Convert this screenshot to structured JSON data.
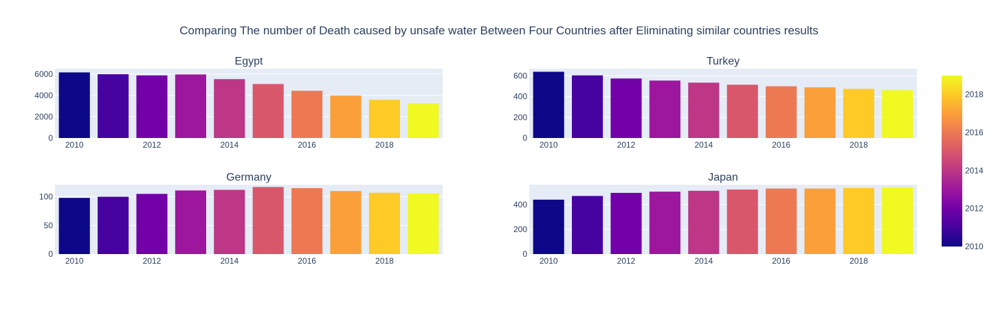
{
  "title": "Comparing The number of Death caused by unsafe water Between Four Countries after Eliminating similar countries results",
  "chart_data": {
    "type": "bar",
    "color_scale": {
      "name": "plasma",
      "stops": [
        "#0d0887",
        "#46039f",
        "#7201a8",
        "#9c179e",
        "#bd3786",
        "#d8576b",
        "#ed7953",
        "#fb9f3a",
        "#fdca26",
        "#f0f921"
      ],
      "range": [
        2010,
        2019
      ],
      "ticks": [
        2010,
        2012,
        2014,
        2016,
        2018
      ]
    },
    "panels": [
      {
        "title": "Egypt",
        "x": [
          2010,
          2011,
          2012,
          2013,
          2014,
          2015,
          2016,
          2017,
          2018,
          2019
        ],
        "values": [
          6150,
          5980,
          5870,
          5960,
          5520,
          5060,
          4430,
          3980,
          3580,
          3260
        ],
        "ylim": [
          0,
          6500
        ],
        "yticks": [
          0,
          2000,
          4000,
          6000
        ],
        "xticks": [
          2010,
          2012,
          2014,
          2016,
          2018
        ]
      },
      {
        "title": "Turkey",
        "x": [
          2010,
          2011,
          2012,
          2013,
          2014,
          2015,
          2016,
          2017,
          2018,
          2019
        ],
        "values": [
          640,
          605,
          575,
          555,
          535,
          515,
          500,
          490,
          475,
          462
        ],
        "ylim": [
          0,
          670
        ],
        "yticks": [
          0,
          200,
          400,
          600
        ],
        "xticks": [
          2010,
          2012,
          2014,
          2016,
          2018
        ]
      },
      {
        "title": "Germany",
        "x": [
          2010,
          2011,
          2012,
          2013,
          2014,
          2015,
          2016,
          2017,
          2018,
          2019
        ],
        "values": [
          98,
          100,
          105,
          111,
          112,
          117,
          115,
          110,
          107,
          106
        ],
        "ylim": [
          0,
          121
        ],
        "yticks": [
          0,
          50,
          100
        ],
        "xticks": [
          2010,
          2012,
          2014,
          2016,
          2018
        ]
      },
      {
        "title": "Japan",
        "x": [
          2010,
          2011,
          2012,
          2013,
          2014,
          2015,
          2016,
          2017,
          2018,
          2019
        ],
        "values": [
          440,
          470,
          495,
          505,
          512,
          522,
          530,
          530,
          535,
          540
        ],
        "ylim": [
          0,
          561
        ],
        "yticks": [
          0,
          200,
          400
        ],
        "xticks": [
          2010,
          2012,
          2014,
          2016,
          2018
        ]
      }
    ]
  }
}
